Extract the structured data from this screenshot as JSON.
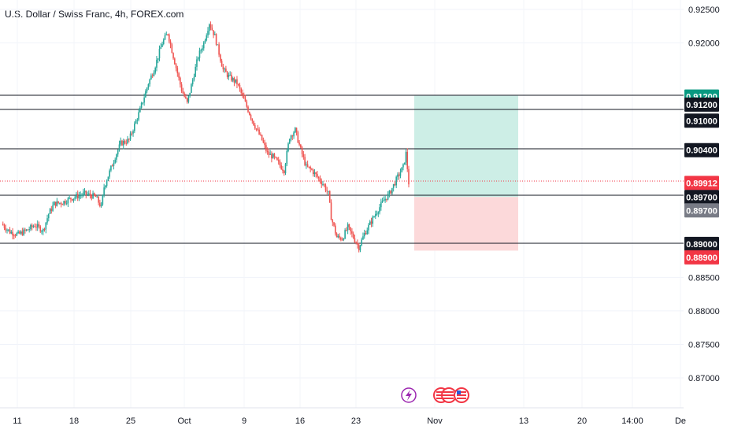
{
  "chart_title": "U.S. Dollar / Swiss Franc, 4h, FOREX.com",
  "colors": {
    "up": "#26a69a",
    "down": "#ef5350",
    "line": "#131722",
    "target_zone": "#cdeee6",
    "stop_zone": "#fcd9da",
    "badge_green": "#089981",
    "badge_red": "#f23645",
    "badge_black": "#131722",
    "badge_gray": "#787b86"
  },
  "chart_data": {
    "type": "candlestick",
    "title": "U.S. Dollar / Swiss Franc, 4h, FOREX.com",
    "ylim": [
      0.8665,
      0.9253
    ],
    "y_ticks": [
      "0.92500",
      "0.92000",
      "0.88500",
      "0.88000",
      "0.87500",
      "0.87000"
    ],
    "x_ticks": [
      "11",
      "18",
      "25",
      "Oct",
      "9",
      "16",
      "23",
      "Nov",
      "13",
      "20",
      "14:00",
      "De"
    ],
    "price_path": [
      [
        0,
        0.893
      ],
      [
        6,
        0.8918
      ],
      [
        12,
        0.8914
      ],
      [
        18,
        0.892
      ],
      [
        24,
        0.8928
      ],
      [
        30,
        0.892
      ],
      [
        34,
        0.8945
      ],
      [
        38,
        0.896
      ],
      [
        44,
        0.8962
      ],
      [
        50,
        0.8968
      ],
      [
        60,
        0.8975
      ],
      [
        68,
        0.897
      ],
      [
        72,
        0.8955
      ],
      [
        74,
        0.8985
      ],
      [
        82,
        0.903
      ],
      [
        86,
        0.905
      ],
      [
        92,
        0.9055
      ],
      [
        100,
        0.91
      ],
      [
        106,
        0.914
      ],
      [
        110,
        0.916
      ],
      [
        116,
        0.92
      ],
      [
        120,
        0.9215
      ],
      [
        124,
        0.918
      ],
      [
        130,
        0.913
      ],
      [
        134,
        0.911
      ],
      [
        138,
        0.9145
      ],
      [
        142,
        0.918
      ],
      [
        146,
        0.92
      ],
      [
        150,
        0.923
      ],
      [
        154,
        0.921
      ],
      [
        160,
        0.916
      ],
      [
        164,
        0.915
      ],
      [
        170,
        0.914
      ],
      [
        176,
        0.911
      ],
      [
        182,
        0.908
      ],
      [
        188,
        0.9055
      ],
      [
        192,
        0.9035
      ],
      [
        196,
        0.903
      ],
      [
        200,
        0.902
      ],
      [
        204,
        0.901
      ],
      [
        208,
        0.906
      ],
      [
        212,
        0.907
      ],
      [
        216,
        0.904
      ],
      [
        220,
        0.9015
      ],
      [
        224,
        0.901
      ],
      [
        228,
        0.9
      ],
      [
        232,
        0.899
      ],
      [
        236,
        0.8975
      ],
      [
        238,
        0.894
      ],
      [
        242,
        0.891
      ],
      [
        246,
        0.8908
      ],
      [
        250,
        0.8925
      ],
      [
        254,
        0.891
      ],
      [
        258,
        0.8895
      ],
      [
        262,
        0.8915
      ],
      [
        266,
        0.893
      ],
      [
        270,
        0.8945
      ],
      [
        276,
        0.8965
      ],
      [
        280,
        0.8975
      ],
      [
        286,
        0.9
      ],
      [
        290,
        0.9015
      ],
      [
        292,
        0.9035
      ],
      [
        294,
        0.8991
      ]
    ],
    "horizontal_levels": [
      "0.91200",
      "0.91000",
      "0.90400",
      "0.89700",
      "0.89000"
    ],
    "price_badges": [
      {
        "label": "0.91200",
        "value": 0.912,
        "color": "badge_green"
      },
      {
        "label": "0.91200",
        "value": 0.9108,
        "color": "badge_black"
      },
      {
        "label": "0.91000",
        "value": 0.9084,
        "color": "badge_black"
      },
      {
        "label": "0.90400",
        "value": 0.904,
        "color": "badge_black"
      },
      {
        "label": "0.89912",
        "value": 0.8991,
        "color": "badge_red"
      },
      {
        "label": "0.89700",
        "value": 0.897,
        "color": "badge_black"
      },
      {
        "label": "0.89700",
        "value": 0.895,
        "color": "badge_gray"
      },
      {
        "label": "0.89000",
        "value": 0.89,
        "color": "badge_black"
      },
      {
        "label": "0.88900",
        "value": 0.888,
        "color": "badge_red"
      }
    ],
    "position": {
      "entry": 0.897,
      "target": 0.912,
      "stop": 0.889
    },
    "event_icons": [
      "lightning-icon",
      "us-flag-icon"
    ]
  }
}
